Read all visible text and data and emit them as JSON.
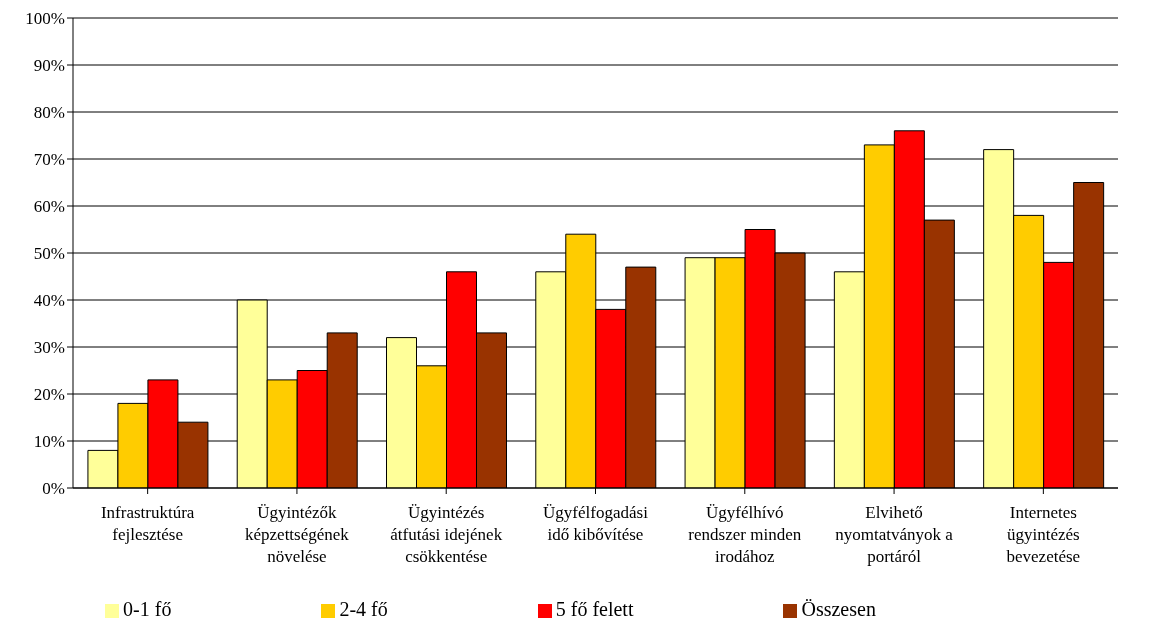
{
  "chart_data": {
    "type": "bar",
    "categories": [
      "Infrastruktúra fejlesztése",
      "Ügyintézők képzettségének növelése",
      "Ügyintézés átfutási idejének csökkentése",
      "Ügyfélfogadási idő kibővítése",
      "Ügyfélhívó rendszer minden irodához",
      "Elvihető nyomtatványok a portáról",
      "Internetes ügyintézés bevezetése"
    ],
    "series": [
      {
        "name": "0-1 fő",
        "color": "#ffff99",
        "values": [
          8,
          40,
          32,
          46,
          49,
          46,
          72
        ]
      },
      {
        "name": "2-4 fő",
        "color": "#ffcc00",
        "values": [
          18,
          23,
          26,
          54,
          49,
          73,
          58
        ]
      },
      {
        "name": "5 fő felett",
        "color": "#ff0000",
        "values": [
          23,
          25,
          46,
          38,
          55,
          76,
          48
        ]
      },
      {
        "name": "Összesen",
        "color": "#993300",
        "values": [
          14,
          33,
          33,
          47,
          50,
          57,
          65
        ]
      }
    ],
    "ylim": [
      0,
      100
    ],
    "yticks": [
      {
        "value": 0,
        "label": "0%"
      },
      {
        "value": 10,
        "label": "10%"
      },
      {
        "value": 20,
        "label": "20%"
      },
      {
        "value": 30,
        "label": "30%"
      },
      {
        "value": 40,
        "label": "40%"
      },
      {
        "value": 50,
        "label": "50%"
      },
      {
        "value": 60,
        "label": "60%"
      },
      {
        "value": 70,
        "label": "70%"
      },
      {
        "value": 80,
        "label": "80%"
      },
      {
        "value": 90,
        "label": "90%"
      },
      {
        "value": 100,
        "label": "100%"
      }
    ],
    "grid": "y",
    "legend": "bottom"
  }
}
